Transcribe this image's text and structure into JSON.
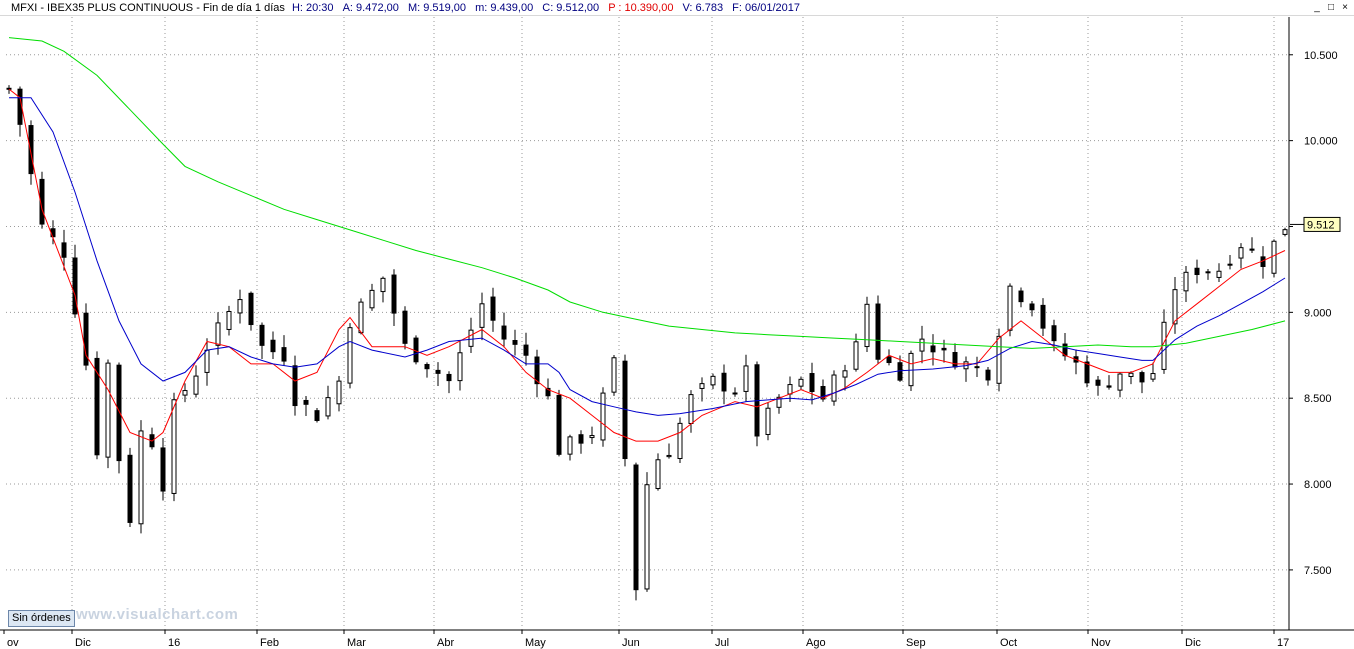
{
  "header": {
    "symbol": "MFXI - IBEX35 PLUS CONTINUOUS - Fin de día 1 días",
    "h": "H: 20:30",
    "a": "A: 9.472,00",
    "m": "M: 9.519,00",
    "min": "m: 9.439,00",
    "c": "C: 9.512,00",
    "p": "P : 10.390,00",
    "v": "V: 6.783",
    "f": "F: 06/01/2017",
    "colors": {
      "symbol": "#000000",
      "h": "#000080",
      "a": "#000080",
      "m": "#000080",
      "min": "#000080",
      "c": "#000080",
      "p": "#e00000",
      "v": "#000080",
      "f": "#000080"
    }
  },
  "window_controls": {
    "minimize": "_",
    "restore": "□",
    "close": "×"
  },
  "footer": {
    "orders_button": "Sin órdenes",
    "watermark": "www.visualchart.com"
  },
  "chart_data": {
    "type": "candlestick",
    "ylim": [
      7150,
      10720
    ],
    "y_ticks": [
      "10.500",
      "10.000",
      "9.500",
      "9.000",
      "8.500",
      "8.000",
      "7.500"
    ],
    "y_tick_values": [
      10500,
      10000,
      9500,
      9000,
      8500,
      8000,
      7500
    ],
    "x_labels": [
      {
        "label": "ov",
        "month": 0.15
      },
      {
        "label": "Dic",
        "month": 1
      },
      {
        "label": "16",
        "month": 2
      },
      {
        "label": "Feb",
        "month": 3
      },
      {
        "label": "Mar",
        "month": 4
      },
      {
        "label": "Abr",
        "month": 5
      },
      {
        "label": "May",
        "month": 6
      },
      {
        "label": "Jun",
        "month": 7
      },
      {
        "label": "Jul",
        "month": 8
      },
      {
        "label": "Ago",
        "month": 9
      },
      {
        "label": "Sep",
        "month": 10
      },
      {
        "label": "Oct",
        "month": 11
      },
      {
        "label": "Nov",
        "month": 12
      },
      {
        "label": "Dic",
        "month": 13
      },
      {
        "label": "17",
        "month": 14
      }
    ],
    "last_price": "9.512",
    "last_value": 9512,
    "grid": true,
    "close_path": [
      [
        0,
        10300
      ],
      [
        1,
        10100
      ],
      [
        3,
        9500
      ],
      [
        5,
        9350
      ],
      [
        7,
        8700
      ],
      [
        8,
        8200
      ],
      [
        9,
        8700
      ],
      [
        9.5,
        8500
      ],
      [
        10,
        8150
      ],
      [
        11,
        7800
      ],
      [
        12,
        8300
      ],
      [
        13,
        8250
      ],
      [
        14,
        8000
      ],
      [
        15,
        8450
      ],
      [
        17,
        8650
      ],
      [
        18,
        8800
      ],
      [
        21,
        9100
      ],
      [
        23,
        8800
      ],
      [
        25,
        8750
      ],
      [
        26,
        8500
      ],
      [
        28,
        8400
      ],
      [
        30,
        8600
      ],
      [
        31,
        8950
      ],
      [
        34,
        9200
      ],
      [
        36,
        8800
      ],
      [
        38,
        8700
      ],
      [
        40,
        8600
      ],
      [
        43,
        9050
      ],
      [
        45,
        8850
      ],
      [
        47,
        8750
      ],
      [
        49,
        8500
      ],
      [
        50,
        8200
      ],
      [
        53,
        8300
      ],
      [
        55,
        8700
      ],
      [
        56,
        8150
      ],
      [
        57,
        7400
      ],
      [
        58,
        8000
      ],
      [
        59,
        8150
      ],
      [
        60,
        8200
      ],
      [
        62,
        8500
      ],
      [
        64,
        8600
      ],
      [
        66,
        8550
      ],
      [
        67,
        8650
      ],
      [
        68,
        8300
      ],
      [
        70,
        8500
      ],
      [
        72,
        8600
      ],
      [
        74,
        8500
      ],
      [
        76,
        8700
      ],
      [
        77,
        8800
      ],
      [
        78,
        9050
      ],
      [
        79,
        8750
      ],
      [
        81,
        8650
      ],
      [
        83,
        8850
      ],
      [
        85,
        8750
      ],
      [
        87,
        8700
      ],
      [
        89,
        8650
      ],
      [
        91,
        9150
      ],
      [
        93,
        9050
      ],
      [
        95,
        8800
      ],
      [
        97,
        8700
      ],
      [
        99,
        8550
      ],
      [
        101,
        8650
      ],
      [
        103,
        8600
      ],
      [
        104,
        8650
      ],
      [
        106,
        9150
      ],
      [
        108,
        9250
      ],
      [
        110,
        9250
      ],
      [
        112,
        9400
      ],
      [
        114,
        9300
      ],
      [
        116,
        9500
      ]
    ],
    "series": [
      {
        "name": "MA red",
        "color": "#ff0000",
        "values": [
          [
            0,
            10300
          ],
          [
            1,
            10250
          ],
          [
            3,
            9600
          ],
          [
            6,
            9100
          ],
          [
            7,
            8750
          ],
          [
            9,
            8550
          ],
          [
            11,
            8300
          ],
          [
            13,
            8250
          ],
          [
            14,
            8300
          ],
          [
            16,
            8600
          ],
          [
            18,
            8830
          ],
          [
            20,
            8800
          ],
          [
            22,
            8700
          ],
          [
            24,
            8700
          ],
          [
            26,
            8600
          ],
          [
            28,
            8650
          ],
          [
            30,
            8900
          ],
          [
            31,
            8970
          ],
          [
            33,
            8800
          ],
          [
            36,
            8800
          ],
          [
            38,
            8750
          ],
          [
            40,
            8800
          ],
          [
            43,
            8900
          ],
          [
            45,
            8800
          ],
          [
            47,
            8650
          ],
          [
            49,
            8550
          ],
          [
            51,
            8500
          ],
          [
            53,
            8400
          ],
          [
            55,
            8300
          ],
          [
            57,
            8250
          ],
          [
            59,
            8250
          ],
          [
            61,
            8300
          ],
          [
            63,
            8400
          ],
          [
            66,
            8480
          ],
          [
            68,
            8450
          ],
          [
            70,
            8500
          ],
          [
            72,
            8550
          ],
          [
            74,
            8500
          ],
          [
            76,
            8560
          ],
          [
            78,
            8650
          ],
          [
            80,
            8750
          ],
          [
            82,
            8700
          ],
          [
            84,
            8730
          ],
          [
            86,
            8700
          ],
          [
            88,
            8700
          ],
          [
            90,
            8850
          ],
          [
            92,
            8950
          ],
          [
            94,
            8850
          ],
          [
            96,
            8750
          ],
          [
            98,
            8700
          ],
          [
            100,
            8650
          ],
          [
            102,
            8650
          ],
          [
            104,
            8700
          ],
          [
            106,
            8950
          ],
          [
            108,
            9050
          ],
          [
            110,
            9150
          ],
          [
            112,
            9250
          ],
          [
            114,
            9300
          ],
          [
            116,
            9360
          ]
        ]
      },
      {
        "name": "MA blue",
        "color": "#0000cc",
        "values": [
          [
            0,
            10250
          ],
          [
            2,
            10250
          ],
          [
            4,
            10050
          ],
          [
            6,
            9700
          ],
          [
            8,
            9300
          ],
          [
            10,
            8950
          ],
          [
            12,
            8700
          ],
          [
            14,
            8600
          ],
          [
            16,
            8650
          ],
          [
            18,
            8780
          ],
          [
            20,
            8800
          ],
          [
            22,
            8740
          ],
          [
            24,
            8700
          ],
          [
            26,
            8680
          ],
          [
            28,
            8700
          ],
          [
            30,
            8800
          ],
          [
            31,
            8830
          ],
          [
            33,
            8780
          ],
          [
            36,
            8740
          ],
          [
            38,
            8780
          ],
          [
            40,
            8830
          ],
          [
            43,
            8850
          ],
          [
            45,
            8780
          ],
          [
            47,
            8700
          ],
          [
            49,
            8700
          ],
          [
            50,
            8650
          ],
          [
            51,
            8550
          ],
          [
            53,
            8480
          ],
          [
            55,
            8450
          ],
          [
            57,
            8420
          ],
          [
            59,
            8400
          ],
          [
            61,
            8410
          ],
          [
            64,
            8440
          ],
          [
            67,
            8480
          ],
          [
            69,
            8490
          ],
          [
            71,
            8500
          ],
          [
            73,
            8490
          ],
          [
            75,
            8530
          ],
          [
            77,
            8580
          ],
          [
            79,
            8640
          ],
          [
            81,
            8660
          ],
          [
            84,
            8670
          ],
          [
            87,
            8690
          ],
          [
            89,
            8720
          ],
          [
            91,
            8790
          ],
          [
            93,
            8830
          ],
          [
            95,
            8810
          ],
          [
            97,
            8780
          ],
          [
            99,
            8760
          ],
          [
            101,
            8740
          ],
          [
            103,
            8720
          ],
          [
            104,
            8720
          ],
          [
            106,
            8840
          ],
          [
            108,
            8920
          ],
          [
            110,
            8980
          ],
          [
            112,
            9050
          ],
          [
            114,
            9120
          ],
          [
            116,
            9200
          ]
        ]
      },
      {
        "name": "MA green",
        "color": "#00dd00",
        "values": [
          [
            0,
            10600
          ],
          [
            3,
            10580
          ],
          [
            5,
            10520
          ],
          [
            8,
            10380
          ],
          [
            11,
            10180
          ],
          [
            14,
            9980
          ],
          [
            16,
            9850
          ],
          [
            19,
            9760
          ],
          [
            22,
            9680
          ],
          [
            25,
            9600
          ],
          [
            28,
            9540
          ],
          [
            31,
            9480
          ],
          [
            34,
            9420
          ],
          [
            37,
            9360
          ],
          [
            40,
            9310
          ],
          [
            43,
            9260
          ],
          [
            46,
            9200
          ],
          [
            49,
            9130
          ],
          [
            51,
            9060
          ],
          [
            54,
            9000
          ],
          [
            57,
            8960
          ],
          [
            60,
            8920
          ],
          [
            63,
            8900
          ],
          [
            66,
            8880
          ],
          [
            69,
            8870
          ],
          [
            72,
            8860
          ],
          [
            75,
            8850
          ],
          [
            78,
            8840
          ],
          [
            81,
            8830
          ],
          [
            84,
            8820
          ],
          [
            87,
            8810
          ],
          [
            90,
            8800
          ],
          [
            93,
            8790
          ],
          [
            96,
            8800
          ],
          [
            99,
            8810
          ],
          [
            102,
            8800
          ],
          [
            104,
            8800
          ],
          [
            107,
            8820
          ],
          [
            110,
            8860
          ],
          [
            113,
            8900
          ],
          [
            116,
            8950
          ]
        ]
      }
    ]
  }
}
